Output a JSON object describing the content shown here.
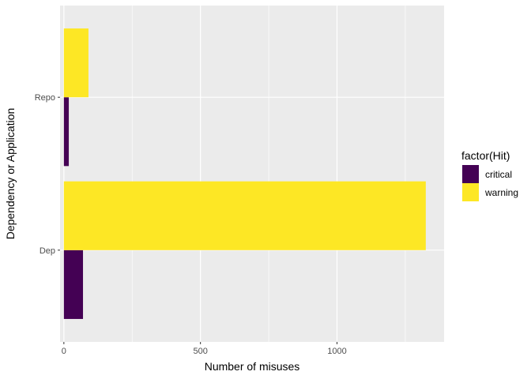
{
  "chart_data": {
    "type": "bar",
    "orientation": "horizontal",
    "position": "dodge",
    "categories": [
      "Dep",
      "Repo"
    ],
    "series": [
      {
        "name": "critical",
        "color": "#440154",
        "values": [
          70,
          18
        ]
      },
      {
        "name": "warning",
        "color": "#FDE725",
        "values": [
          1325,
          90
        ]
      }
    ],
    "xlabel": "Number of misuses",
    "ylabel": "Dependency or Application",
    "xlim": [
      -14,
      1392
    ],
    "xticks": [
      0,
      500,
      1000
    ],
    "xtick_labels": [
      "0",
      "500",
      "1000"
    ],
    "grid": true,
    "legend": {
      "title": "factor(Hit)",
      "placement": "right"
    },
    "background": "#EBEBEB"
  }
}
